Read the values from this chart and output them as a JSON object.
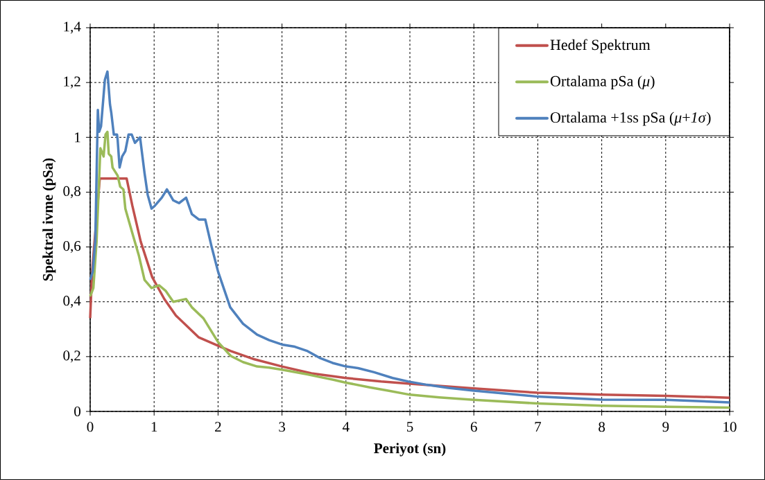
{
  "chart_data": {
    "type": "line",
    "xlabel": "Periyot (sn)",
    "ylabel": "Spektral ivme (pSa)",
    "xlim": [
      0,
      10
    ],
    "ylim": [
      0,
      1.4
    ],
    "xticks": [
      0,
      1,
      2,
      3,
      4,
      5,
      6,
      7,
      8,
      9,
      10
    ],
    "yticks": [
      0,
      {
        "value": 0.2,
        "label": "0,2"
      },
      {
        "value": 0.4,
        "label": "0,4"
      },
      {
        "value": 0.6,
        "label": "0,6"
      },
      {
        "value": 0.8,
        "label": "0,8"
      },
      1,
      {
        "value": 1.2,
        "label": "1,2"
      },
      {
        "value": 1.4,
        "label": "1,4"
      }
    ],
    "grid": true,
    "legend": "top right",
    "marker": "none",
    "line_style": "solid",
    "series": [
      {
        "name": "Hedef Spektrum",
        "color": "#c0504d",
        "x": [
          0,
          0.03,
          0.15,
          0.57,
          0.66,
          0.79,
          0.97,
          1.16,
          1.34,
          1.52,
          1.7,
          2.0,
          2.2,
          2.57,
          3.0,
          3.46,
          4.0,
          4.55,
          5.0,
          6.0,
          7.0,
          8.0,
          9.0,
          10.0
        ],
        "values": [
          0.34,
          0.51,
          0.85,
          0.85,
          0.75,
          0.62,
          0.49,
          0.41,
          0.35,
          0.31,
          0.27,
          0.24,
          0.22,
          0.19,
          0.164,
          0.139,
          0.122,
          0.109,
          0.101,
          0.084,
          0.068,
          0.061,
          0.057,
          0.05
        ]
      },
      {
        "name": "Ortalama pSa (*μ*)",
        "color": "#9bbb59",
        "x": [
          0,
          0.05,
          0.1,
          0.16,
          0.21,
          0.24,
          0.27,
          0.29,
          0.33,
          0.35,
          0.43,
          0.47,
          0.52,
          0.55,
          0.66,
          0.76,
          0.85,
          0.96,
          1.08,
          1.18,
          1.3,
          1.5,
          1.59,
          1.77,
          2.0,
          2.2,
          2.39,
          2.61,
          2.8,
          3.0,
          3.4,
          3.58,
          3.79,
          4.0,
          4.37,
          4.66,
          5.0,
          5.46,
          6.0,
          7.0,
          8.0,
          9.0,
          10.0
        ],
        "values": [
          0.42,
          0.45,
          0.62,
          0.96,
          0.93,
          1.01,
          1.02,
          0.94,
          0.93,
          0.89,
          0.86,
          0.82,
          0.81,
          0.74,
          0.65,
          0.57,
          0.48,
          0.45,
          0.46,
          0.44,
          0.4,
          0.41,
          0.38,
          0.34,
          0.253,
          0.202,
          0.18,
          0.164,
          0.16,
          0.152,
          0.135,
          0.126,
          0.116,
          0.105,
          0.088,
          0.076,
          0.061,
          0.051,
          0.042,
          0.029,
          0.021,
          0.017,
          0.014
        ]
      },
      {
        "name": "Ortalama +1ss pSa (*μ*+*1σ*)",
        "color": "#4f81bd",
        "x": [
          0,
          0.04,
          0.08,
          0.12,
          0.14,
          0.17,
          0.23,
          0.27,
          0.31,
          0.33,
          0.37,
          0.42,
          0.43,
          0.46,
          0.5,
          0.55,
          0.6,
          0.65,
          0.7,
          0.78,
          0.85,
          0.9,
          0.96,
          1.01,
          1.12,
          1.2,
          1.3,
          1.39,
          1.5,
          1.59,
          1.7,
          1.8,
          1.9,
          2.0,
          2.19,
          2.39,
          2.61,
          2.8,
          3.0,
          3.2,
          3.4,
          3.6,
          3.79,
          4.0,
          4.19,
          4.44,
          4.73,
          4.98,
          5.27,
          5.6,
          6.0,
          7.0,
          8.0,
          9.0,
          10.0
        ],
        "values": [
          0.48,
          0.51,
          0.62,
          1.1,
          1.02,
          1.04,
          1.21,
          1.24,
          1.12,
          1.09,
          1.01,
          1.01,
          0.99,
          0.89,
          0.93,
          0.95,
          1.01,
          1.01,
          0.98,
          1.0,
          0.87,
          0.79,
          0.74,
          0.75,
          0.78,
          0.81,
          0.77,
          0.76,
          0.78,
          0.72,
          0.7,
          0.7,
          0.6,
          0.51,
          0.38,
          0.32,
          0.28,
          0.26,
          0.244,
          0.236,
          0.22,
          0.194,
          0.177,
          0.164,
          0.158,
          0.143,
          0.122,
          0.109,
          0.097,
          0.086,
          0.076,
          0.054,
          0.043,
          0.042,
          0.033
        ]
      }
    ]
  }
}
